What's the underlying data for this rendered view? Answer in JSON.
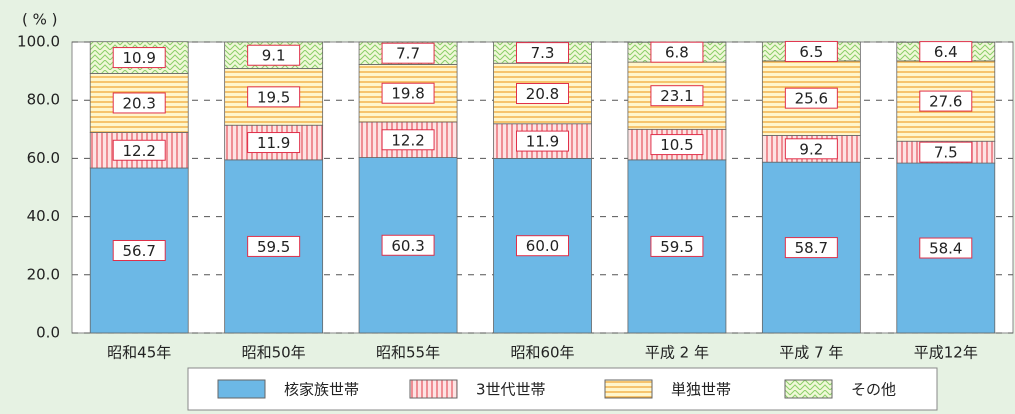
{
  "chart_data": {
    "type": "stacked_bar",
    "ylabel": "( % )",
    "categories": [
      "昭和45年",
      "昭和50年",
      "昭和55年",
      "昭和60年",
      "平成 2 年",
      "平成 7 年",
      "平成12年"
    ],
    "series": [
      {
        "name": "核家族世帯",
        "color": "#6cb8e6",
        "values": [
          56.7,
          59.5,
          60.3,
          60.0,
          59.5,
          58.7,
          58.4
        ],
        "value_labels": [
          "56.7",
          "59.5",
          "60.3",
          "60.0",
          "59.5",
          "58.7",
          "58.4"
        ]
      },
      {
        "name": "3世代世帯",
        "color": "#f08080",
        "values": [
          12.2,
          11.9,
          12.2,
          11.9,
          10.5,
          9.2,
          7.5
        ]
      },
      {
        "name": "単独世帯",
        "color": "#f5b13d",
        "values": [
          20.3,
          19.5,
          19.8,
          20.8,
          23.1,
          25.6,
          27.6
        ]
      },
      {
        "name": "その他",
        "color": "#9acd5a",
        "values": [
          10.9,
          9.1,
          7.7,
          7.3,
          6.8,
          6.5,
          6.4
        ]
      }
    ],
    "ylim": [
      0,
      100
    ],
    "yticks": [
      {
        "value": 0,
        "label": "0.0"
      },
      {
        "value": 20,
        "label": "20.0"
      },
      {
        "value": 40,
        "label": "40.0"
      },
      {
        "value": 60,
        "label": "60.0"
      },
      {
        "value": 80,
        "label": "80.0"
      },
      {
        "value": 100,
        "label": "100.0"
      }
    ],
    "grid": true
  }
}
